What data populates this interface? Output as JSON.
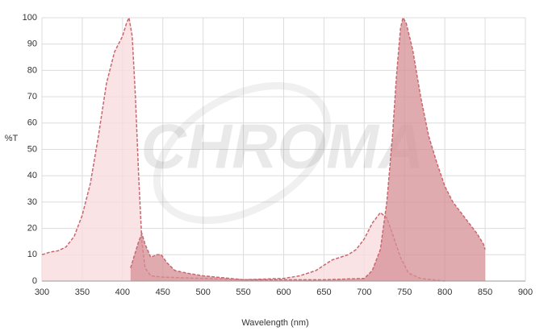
{
  "chart_data": {
    "type": "area",
    "watermark": "CHROMA",
    "xlabel": "Wavelength (nm)",
    "ylabel": "%T",
    "xlim": [
      300,
      900
    ],
    "ylim": [
      0,
      100
    ],
    "xticks": [
      300,
      350,
      400,
      450,
      500,
      550,
      600,
      650,
      700,
      750,
      800,
      850,
      900
    ],
    "yticks": [
      0,
      10,
      20,
      30,
      40,
      50,
      60,
      70,
      80,
      90,
      100
    ],
    "grid": true,
    "series": [
      {
        "color": "#f7dcdf",
        "x": [
          300,
          310,
          320,
          330,
          340,
          350,
          360,
          370,
          380,
          390,
          400,
          405,
          408,
          412,
          416,
          420,
          424,
          428,
          435,
          450,
          500,
          550,
          600,
          620,
          640,
          660,
          680,
          690,
          700,
          710,
          720,
          728,
          735,
          745,
          755,
          770,
          800
        ],
        "values": [
          10,
          11,
          11.5,
          13,
          17,
          25,
          37,
          55,
          75,
          87,
          93,
          98,
          100,
          93,
          70,
          40,
          15,
          5,
          2,
          1.5,
          1,
          0.5,
          1,
          2,
          4,
          8,
          10,
          12,
          16,
          22,
          26,
          24,
          18,
          9,
          3,
          1,
          0
        ]
      },
      {
        "color": "#d68f94",
        "x": [
          410,
          415,
          420,
          424,
          428,
          435,
          442,
          448,
          455,
          465,
          480,
          500,
          550,
          600,
          650,
          700,
          710,
          720,
          728,
          735,
          740,
          745,
          748,
          752,
          760,
          770,
          780,
          790,
          800,
          810,
          820,
          830,
          840,
          848,
          850
        ],
        "values": [
          5,
          10,
          15,
          18,
          14,
          9,
          10,
          10,
          7,
          4,
          3,
          2,
          0.5,
          0.5,
          0.5,
          1,
          4,
          12,
          30,
          55,
          78,
          96,
          100,
          98,
          88,
          70,
          55,
          45,
          36,
          30,
          26,
          22,
          18,
          14,
          12
        ]
      }
    ]
  }
}
